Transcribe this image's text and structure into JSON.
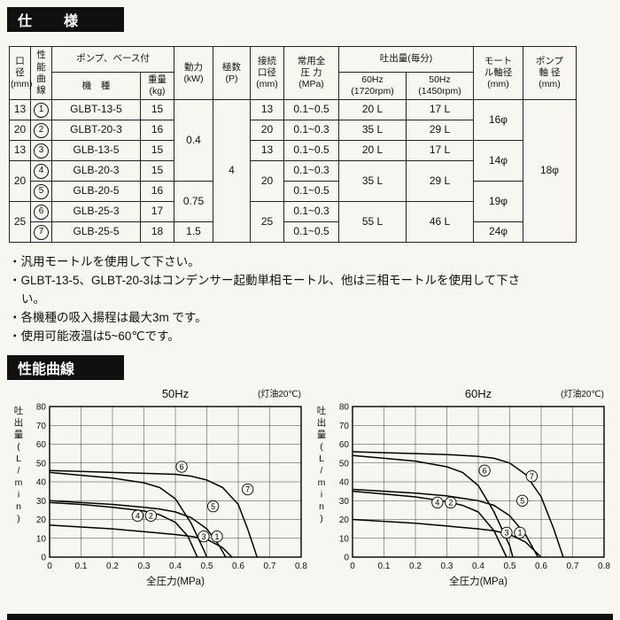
{
  "colors": {
    "section_bar_bg": "#101010",
    "section_bar_text": "#ffffff",
    "line_color": "#000000",
    "page_bg": "#f8f6f1"
  },
  "sections": {
    "spec_title": "仕　様",
    "curves_title": "性能曲線"
  },
  "spec_table": {
    "headers": {
      "bore": "口\n径\n(mm)",
      "curve": "性\n能\n曲\n線",
      "pump_base": "ポンプ、ベース付",
      "model": "機　種",
      "weight": "重量\n(kg)",
      "power": "動力\n(kW)",
      "poles": "極数\n(P)",
      "conn": "接続\n口径\n(mm)",
      "pressure": "常用全\n圧 力\n(MPa)",
      "discharge": "吐出量(毎分)",
      "hz60": "60Hz\n(1720rpm)",
      "hz50": "50Hz\n(1450rpm)",
      "motor_shaft": "モート\nル軸径\n(mm)",
      "pump_shaft": "ポンプ\n軸 径\n(mm)"
    },
    "rows": [
      {
        "bore": "13",
        "no": "1",
        "model": "GLBT-13-5",
        "weight": "15",
        "power": "0.4",
        "poles": "4",
        "conn": "13",
        "pressure": "0.1~0.5",
        "q60": "20 L",
        "q50": "17 L",
        "motor_shaft": "16φ",
        "pump_shaft": "18φ"
      },
      {
        "bore": "20",
        "no": "2",
        "model": "GLBT-20-3",
        "weight": "16",
        "conn": "20",
        "pressure": "0.1~0.3",
        "q60": "35 L",
        "q50": "29 L"
      },
      {
        "bore": "13",
        "no": "3",
        "model": "GLB-13-5",
        "weight": "15",
        "conn": "13",
        "pressure": "0.1~0.5",
        "q60": "20 L",
        "q50": "17 L",
        "motor_shaft": "14φ"
      },
      {
        "bore": "20",
        "no": "4",
        "model": "GLB-20-3",
        "weight": "15",
        "conn": "20",
        "pressure": "0.1~0.3",
        "q60": "35 L",
        "q50": "29 L"
      },
      {
        "no": "5",
        "model": "GLB-20-5",
        "weight": "16",
        "power": "0.75",
        "pressure": "0.1~0.5",
        "motor_shaft": "19φ"
      },
      {
        "bore": "25",
        "no": "6",
        "model": "GLB-25-3",
        "weight": "17",
        "conn": "25",
        "pressure": "0.1~0.3",
        "q60": "55 L",
        "q50": "46 L"
      },
      {
        "no": "7",
        "model": "GLB-25-5",
        "weight": "18",
        "power": "1.5",
        "pressure": "0.1~0.5",
        "motor_shaft": "24φ"
      }
    ]
  },
  "notes": [
    "・汎用モートルを使用して下さい。",
    "・GLBT-13-5、GLBT-20-3はコンデンサー起動単相モートル、他は三相モートルを使用して下さい。",
    "・各機種の吸入揚程は最大3m です。",
    "・使用可能液温は5~60℃です。"
  ],
  "chart_data": [
    {
      "type": "line",
      "title": "50Hz",
      "annotation": "(灯油20℃)",
      "xlabel": "全圧力(MPa)",
      "ylabel": "吐出量(L/min)",
      "xlim": [
        0,
        0.8
      ],
      "ylim": [
        0,
        80
      ],
      "grid": true,
      "legend": "circled numbers on curves",
      "xticks": [
        0,
        0.1,
        0.2,
        0.3,
        0.4,
        0.5,
        0.6,
        0.7,
        0.8
      ],
      "yticks": [
        0,
        10,
        20,
        30,
        40,
        50,
        60,
        70,
        80
      ],
      "series": [
        {
          "name": "GLB-13-5 / GLBT-13-5",
          "labels": [
            "3",
            "1"
          ],
          "label_x": 0.49,
          "label_y": 11,
          "points": [
            [
              0,
              17
            ],
            [
              0.1,
              16
            ],
            [
              0.2,
              15
            ],
            [
              0.3,
              13.5
            ],
            [
              0.4,
              12
            ],
            [
              0.45,
              11
            ],
            [
              0.5,
              9.5
            ],
            [
              0.55,
              5
            ],
            [
              0.58,
              0
            ]
          ]
        },
        {
          "name": "GLB-20-3 / GLBT-20-3",
          "labels": [
            "4",
            "2"
          ],
          "label_x": 0.28,
          "label_y": 22,
          "points": [
            [
              0,
              29
            ],
            [
              0.1,
              28
            ],
            [
              0.2,
              26.5
            ],
            [
              0.3,
              24.5
            ],
            [
              0.35,
              22.5
            ],
            [
              0.4,
              18.5
            ],
            [
              0.44,
              11
            ],
            [
              0.47,
              0
            ]
          ]
        },
        {
          "name": "GLB-20-5",
          "labels": [
            "5"
          ],
          "label_x": 0.52,
          "label_y": 27,
          "points": [
            [
              0,
              30
            ],
            [
              0.1,
              29
            ],
            [
              0.2,
              28
            ],
            [
              0.3,
              26.5
            ],
            [
              0.35,
              25.5
            ],
            [
              0.4,
              24
            ],
            [
              0.45,
              21
            ],
            [
              0.5,
              15
            ],
            [
              0.54,
              6
            ],
            [
              0.56,
              0
            ]
          ]
        },
        {
          "name": "GLB-25-3",
          "labels": [
            "6"
          ],
          "label_x": 0.42,
          "label_y": 48,
          "points": [
            [
              0,
              45
            ],
            [
              0.1,
              43.5
            ],
            [
              0.2,
              42
            ],
            [
              0.3,
              39.5
            ],
            [
              0.35,
              37
            ],
            [
              0.4,
              31
            ],
            [
              0.45,
              18
            ],
            [
              0.49,
              4
            ],
            [
              0.5,
              0
            ]
          ]
        },
        {
          "name": "GLB-25-5",
          "labels": [
            "7"
          ],
          "label_x": 0.63,
          "label_y": 36,
          "points": [
            [
              0,
              46
            ],
            [
              0.1,
              45.5
            ],
            [
              0.2,
              45
            ],
            [
              0.3,
              44.5
            ],
            [
              0.4,
              44
            ],
            [
              0.45,
              43
            ],
            [
              0.5,
              41
            ],
            [
              0.55,
              37
            ],
            [
              0.6,
              28
            ],
            [
              0.63,
              15
            ],
            [
              0.66,
              0
            ]
          ]
        }
      ]
    },
    {
      "type": "line",
      "title": "60Hz",
      "annotation": "(灯油20℃)",
      "xlabel": "全圧力(MPa)",
      "ylabel": "吐出量(L/min)",
      "xlim": [
        0,
        0.8
      ],
      "ylim": [
        0,
        80
      ],
      "grid": true,
      "legend": "circled numbers on curves",
      "xticks": [
        0,
        0.1,
        0.2,
        0.3,
        0.4,
        0.5,
        0.6,
        0.7,
        0.8
      ],
      "yticks": [
        0,
        10,
        20,
        30,
        40,
        50,
        60,
        70,
        80
      ],
      "series": [
        {
          "name": "GLB-13-5 / GLBT-13-5",
          "labels": [
            "3",
            "1"
          ],
          "label_x": 0.49,
          "label_y": 13,
          "points": [
            [
              0,
              20
            ],
            [
              0.1,
              19
            ],
            [
              0.2,
              18
            ],
            [
              0.3,
              16.5
            ],
            [
              0.4,
              15
            ],
            [
              0.45,
              14
            ],
            [
              0.5,
              12
            ],
            [
              0.55,
              8
            ],
            [
              0.6,
              0
            ]
          ]
        },
        {
          "name": "GLB-20-3 / GLBT-20-3",
          "labels": [
            "4",
            "2"
          ],
          "label_x": 0.27,
          "label_y": 29,
          "points": [
            [
              0,
              35
            ],
            [
              0.1,
              33.5
            ],
            [
              0.2,
              32
            ],
            [
              0.3,
              29.5
            ],
            [
              0.35,
              27.5
            ],
            [
              0.4,
              24
            ],
            [
              0.45,
              14
            ],
            [
              0.49,
              0
            ]
          ]
        },
        {
          "name": "GLB-20-5",
          "labels": [
            "5"
          ],
          "label_x": 0.54,
          "label_y": 30,
          "points": [
            [
              0,
              36
            ],
            [
              0.1,
              35
            ],
            [
              0.2,
              34
            ],
            [
              0.3,
              32.5
            ],
            [
              0.4,
              30
            ],
            [
              0.45,
              27.5
            ],
            [
              0.5,
              22
            ],
            [
              0.55,
              12
            ],
            [
              0.59,
              0
            ]
          ]
        },
        {
          "name": "GLB-25-3",
          "labels": [
            "6"
          ],
          "label_x": 0.42,
          "label_y": 46,
          "points": [
            [
              0,
              54
            ],
            [
              0.1,
              52.5
            ],
            [
              0.2,
              51
            ],
            [
              0.3,
              48
            ],
            [
              0.35,
              45
            ],
            [
              0.4,
              38
            ],
            [
              0.45,
              24
            ],
            [
              0.5,
              6
            ],
            [
              0.51,
              0
            ]
          ]
        },
        {
          "name": "GLB-25-5",
          "labels": [
            "7"
          ],
          "label_x": 0.57,
          "label_y": 43,
          "points": [
            [
              0,
              56
            ],
            [
              0.1,
              55.5
            ],
            [
              0.2,
              55
            ],
            [
              0.3,
              54.5
            ],
            [
              0.4,
              53.5
            ],
            [
              0.45,
              52.5
            ],
            [
              0.5,
              50
            ],
            [
              0.55,
              44
            ],
            [
              0.6,
              32
            ],
            [
              0.64,
              15
            ],
            [
              0.67,
              0
            ]
          ]
        }
      ]
    }
  ]
}
